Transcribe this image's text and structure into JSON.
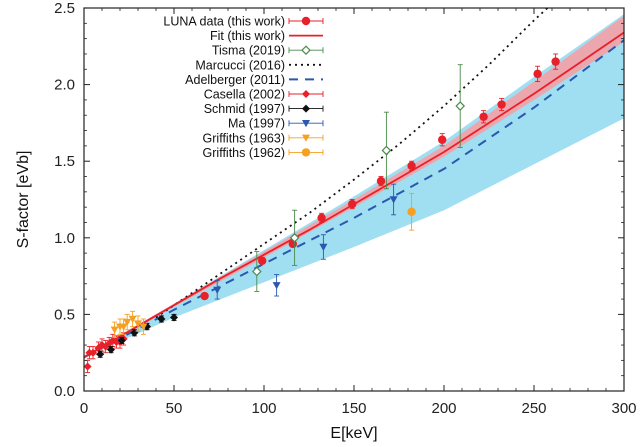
{
  "chart_data": {
    "type": "scatter",
    "xlabel": "E[keV]",
    "ylabel": "S-factor [eVb]",
    "xlim": [
      0,
      300
    ],
    "ylim": [
      0,
      2.5
    ],
    "x_ticks": [
      0,
      50,
      100,
      150,
      200,
      250,
      300
    ],
    "y_ticks": [
      0,
      0.5,
      1.0,
      1.5,
      2.0,
      2.5
    ],
    "x_tick_labels": [
      "0",
      "50",
      "100",
      "150",
      "200",
      "250",
      "300"
    ],
    "y_tick_labels": [
      "0.0",
      "0.5",
      "1.0",
      "1.5",
      "2.0",
      "2.5"
    ],
    "grid": false,
    "legend_placement": "top-left",
    "colors": {
      "luna": "#e8202a",
      "fit": "#e8202a",
      "fit_band": "#f4a0a6",
      "tisma": "#4a8a4a",
      "marcucci": "#111111",
      "adelberger": "#2a58b0",
      "adelberger_band": "#8fd8ee",
      "casella": "#e8202a",
      "schmid": "#111111",
      "ma": "#2a58b0",
      "griffiths1963": "#f5a020",
      "griffiths1962": "#f5a020"
    },
    "legend": [
      {
        "key": "luna",
        "label": "LUNA data (this work)",
        "style": "circle-err"
      },
      {
        "key": "fit",
        "label": "Fit (this work)",
        "style": "line"
      },
      {
        "key": "tisma",
        "label": "Tisma (2019)",
        "style": "open-diamond-err"
      },
      {
        "key": "marcucci",
        "label": "Marcucci (2016)",
        "style": "dotted"
      },
      {
        "key": "adelberger",
        "label": "Adelberger (2011)",
        "style": "dashed"
      },
      {
        "key": "casella",
        "label": "Casella (2002)",
        "style": "diamond-err"
      },
      {
        "key": "schmid",
        "label": "Schmid (1997)",
        "style": "diamond-err"
      },
      {
        "key": "ma",
        "label": "Ma (1997)",
        "style": "triangle-err"
      },
      {
        "key": "griffiths1963",
        "label": "Griffiths (1963)",
        "style": "triangle-err"
      },
      {
        "key": "griffiths1962",
        "label": "Griffiths (1962)",
        "style": "circle-err"
      }
    ],
    "curves": {
      "fit": {
        "x": [
          0,
          25,
          50,
          75,
          100,
          125,
          150,
          175,
          200,
          225,
          250,
          275,
          300
        ],
        "y": [
          0.22,
          0.39,
          0.56,
          0.73,
          0.89,
          1.05,
          1.22,
          1.39,
          1.56,
          1.75,
          1.94,
          2.14,
          2.34
        ]
      },
      "fit_band": {
        "x": [
          0,
          50,
          100,
          150,
          200,
          250,
          300
        ],
        "lo": [
          0.21,
          0.55,
          0.87,
          1.2,
          1.53,
          1.9,
          2.28
        ],
        "hi": [
          0.23,
          0.57,
          0.91,
          1.25,
          1.6,
          2.02,
          2.45
        ]
      },
      "marcucci": {
        "x": [
          40,
          75,
          100,
          125,
          150,
          175,
          200,
          225,
          250,
          265
        ],
        "y": [
          0.48,
          0.76,
          0.96,
          1.16,
          1.38,
          1.61,
          1.86,
          2.13,
          2.42,
          2.58
        ]
      },
      "adelberger": {
        "x": [
          0,
          50,
          100,
          150,
          200,
          250,
          300
        ],
        "y": [
          0.22,
          0.53,
          0.83,
          1.13,
          1.45,
          1.85,
          2.29
        ]
      },
      "adelberger_band": {
        "x": [
          0,
          50,
          100,
          150,
          200,
          250,
          300
        ],
        "lo": [
          0.22,
          0.48,
          0.71,
          0.94,
          1.18,
          1.48,
          1.78
        ],
        "hi": [
          0.23,
          0.57,
          0.92,
          1.27,
          1.63,
          2.05,
          2.46
        ]
      }
    },
    "series": [
      {
        "key": "luna",
        "name": "LUNA data (this work)",
        "marker": "circle",
        "points": [
          {
            "x": 67,
            "y": 0.62,
            "err": 0.02
          },
          {
            "x": 99,
            "y": 0.85,
            "err": 0.02
          },
          {
            "x": 116,
            "y": 0.96,
            "err": 0.02
          },
          {
            "x": 132,
            "y": 1.13,
            "err": 0.03
          },
          {
            "x": 149,
            "y": 1.22,
            "err": 0.03
          },
          {
            "x": 165,
            "y": 1.37,
            "err": 0.03
          },
          {
            "x": 182,
            "y": 1.47,
            "err": 0.03
          },
          {
            "x": 199,
            "y": 1.64,
            "err": 0.04
          },
          {
            "x": 222,
            "y": 1.79,
            "err": 0.04
          },
          {
            "x": 232,
            "y": 1.87,
            "err": 0.04
          },
          {
            "x": 252,
            "y": 2.07,
            "err": 0.05
          },
          {
            "x": 262,
            "y": 2.15,
            "err": 0.05
          }
        ]
      },
      {
        "key": "tisma",
        "name": "Tisma (2019)",
        "marker": "open-diamond",
        "points": [
          {
            "x": 96,
            "y": 0.78,
            "err": 0.13
          },
          {
            "x": 117,
            "y": 1.0,
            "err": 0.18
          },
          {
            "x": 168,
            "y": 1.57,
            "err": 0.25
          },
          {
            "x": 209,
            "y": 1.86,
            "err": 0.27
          }
        ]
      },
      {
        "key": "casella",
        "name": "Casella (2002)",
        "marker": "diamond",
        "points": [
          {
            "x": 2,
            "y": 0.16,
            "err": 0.04
          },
          {
            "x": 3,
            "y": 0.25,
            "err": 0.04
          },
          {
            "x": 5,
            "y": 0.25,
            "err": 0.04
          },
          {
            "x": 8,
            "y": 0.28,
            "err": 0.04
          },
          {
            "x": 10,
            "y": 0.3,
            "err": 0.04
          },
          {
            "x": 12,
            "y": 0.29,
            "err": 0.04
          },
          {
            "x": 14,
            "y": 0.31,
            "err": 0.04
          },
          {
            "x": 16,
            "y": 0.33,
            "err": 0.04
          },
          {
            "x": 18,
            "y": 0.32,
            "err": 0.04
          },
          {
            "x": 20,
            "y": 0.32,
            "err": 0.04
          },
          {
            "x": 22,
            "y": 0.34,
            "err": 0.04
          }
        ]
      },
      {
        "key": "schmid",
        "name": "Schmid (1997)",
        "marker": "diamond",
        "points": [
          {
            "x": 9,
            "y": 0.24,
            "err": 0.02
          },
          {
            "x": 15,
            "y": 0.27,
            "err": 0.02
          },
          {
            "x": 21,
            "y": 0.33,
            "err": 0.02
          },
          {
            "x": 28,
            "y": 0.38,
            "err": 0.02
          },
          {
            "x": 35,
            "y": 0.42,
            "err": 0.02
          },
          {
            "x": 43,
            "y": 0.47,
            "err": 0.02
          },
          {
            "x": 50,
            "y": 0.48,
            "err": 0.02
          }
        ]
      },
      {
        "key": "ma",
        "name": "Ma (1997)",
        "marker": "triangle",
        "points": [
          {
            "x": 74,
            "y": 0.66,
            "err": 0.06
          },
          {
            "x": 107,
            "y": 0.69,
            "err": 0.07
          },
          {
            "x": 133,
            "y": 0.94,
            "err": 0.08
          },
          {
            "x": 172,
            "y": 1.25,
            "err": 0.1
          }
        ]
      },
      {
        "key": "griffiths1963",
        "name": "Griffiths (1963)",
        "marker": "triangle",
        "points": [
          {
            "x": 17,
            "y": 0.4,
            "err": 0.05
          },
          {
            "x": 20,
            "y": 0.42,
            "err": 0.05
          },
          {
            "x": 22,
            "y": 0.42,
            "err": 0.05
          },
          {
            "x": 24,
            "y": 0.45,
            "err": 0.05
          },
          {
            "x": 27,
            "y": 0.47,
            "err": 0.05
          },
          {
            "x": 30,
            "y": 0.44,
            "err": 0.05
          },
          {
            "x": 33,
            "y": 0.42,
            "err": 0.05
          }
        ]
      },
      {
        "key": "griffiths1962",
        "name": "Griffiths (1962)",
        "marker": "circle",
        "points": [
          {
            "x": 182,
            "y": 1.17,
            "err": 0.12
          }
        ]
      }
    ]
  }
}
